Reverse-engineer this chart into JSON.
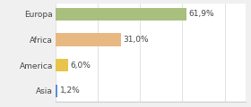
{
  "categories": [
    "Europa",
    "Africa",
    "America",
    "Asia"
  ],
  "values": [
    61.9,
    31.0,
    6.0,
    1.2
  ],
  "labels": [
    "61,9%",
    "31,0%",
    "6,0%",
    "1,2%"
  ],
  "bar_colors": [
    "#a8bf7e",
    "#e8b882",
    "#e8c44a",
    "#5b8fd4"
  ],
  "background_color": "#ffffff",
  "fig_background": "#f0f0f0",
  "xlim": [
    0,
    90
  ],
  "label_fontsize": 6.5,
  "tick_fontsize": 6.5,
  "bar_height": 0.5
}
